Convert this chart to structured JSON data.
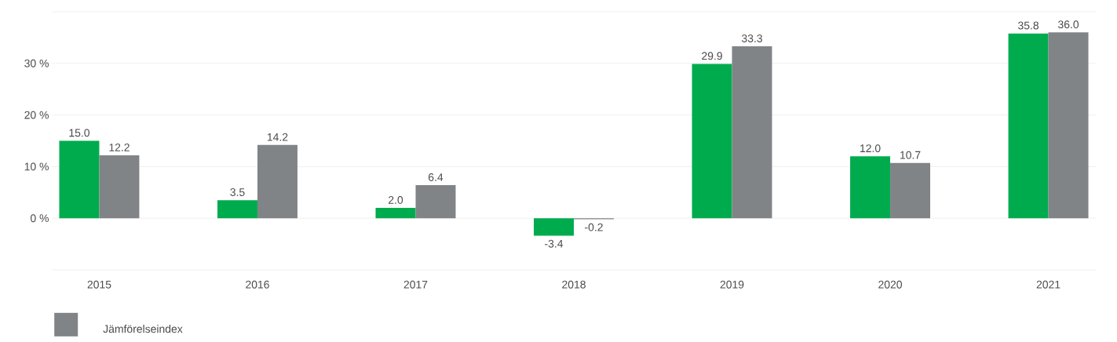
{
  "chart_data": {
    "type": "bar",
    "categories": [
      "2015",
      "2016",
      "2017",
      "2018",
      "2019",
      "2020",
      "2021"
    ],
    "series": [
      {
        "color": "#00ab4e",
        "values": [
          15.0,
          3.5,
          2.0,
          -3.4,
          29.9,
          12.0,
          35.8
        ],
        "value_labels": [
          "15.0",
          "3.5",
          "2.0",
          "-3.4",
          "29.9",
          "12.0",
          "35.8"
        ]
      },
      {
        "name": "Jämförelseindex",
        "color": "#808487",
        "values": [
          12.2,
          14.2,
          6.4,
          -0.2,
          33.3,
          10.7,
          36.0
        ],
        "value_labels": [
          "12.2",
          "14.2",
          "6.4",
          "-0.2",
          "33.3",
          "10.7",
          "36.0"
        ]
      }
    ],
    "ylim": [
      -10,
      40
    ],
    "yticks": [
      {
        "value": -10,
        "label": null
      },
      {
        "value": 0,
        "label": "0 %"
      },
      {
        "value": 10,
        "label": "10 %"
      },
      {
        "value": 20,
        "label": "20 %"
      },
      {
        "value": 30,
        "label": "30 %"
      },
      {
        "value": 40,
        "label": null
      }
    ],
    "grid": "y",
    "legend": "bottom left"
  }
}
